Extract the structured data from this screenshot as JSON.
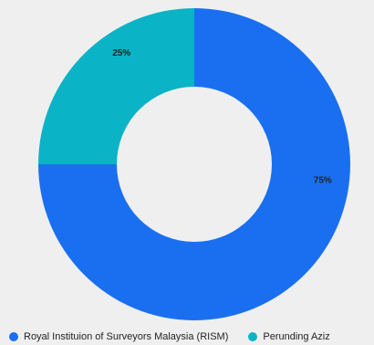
{
  "chart_data": {
    "type": "pie",
    "variant": "donut",
    "title": "",
    "legend_position": "bottom",
    "slices": [
      {
        "label": "Royal Instituion of Surveyors Malaysia (RISM)",
        "value": 75,
        "value_label": "75%",
        "color": "#1a6ff0"
      },
      {
        "label": "Perunding Aziz",
        "value": 25,
        "value_label": "25%",
        "color": "#0ab3c6"
      }
    ]
  }
}
